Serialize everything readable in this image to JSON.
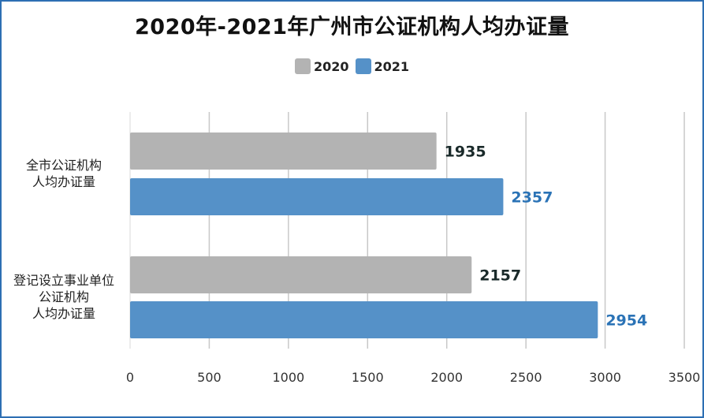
{
  "chart_data": {
    "type": "bar",
    "orientation": "horizontal",
    "title": "2020年-2021年广州市公证机构人均办证量",
    "categories": [
      [
        "全市公证机构",
        "人均办证量"
      ],
      [
        "登记设立事业单位",
        "公证机构",
        "人均办证量"
      ]
    ],
    "series": [
      {
        "name": "2020",
        "color": "#b3b3b3",
        "label_color": "#1a2a2a",
        "values": [
          1935,
          2157
        ]
      },
      {
        "name": "2021",
        "color": "#5591c8",
        "label_color": "#2b73b6",
        "values": [
          2357,
          2954
        ]
      }
    ],
    "xlim": [
      0,
      3500
    ],
    "xticks": [
      "0",
      "500",
      "1000",
      "1500",
      "2000",
      "2500",
      "3000",
      "3500"
    ],
    "grid": true,
    "legend_position": "top"
  }
}
